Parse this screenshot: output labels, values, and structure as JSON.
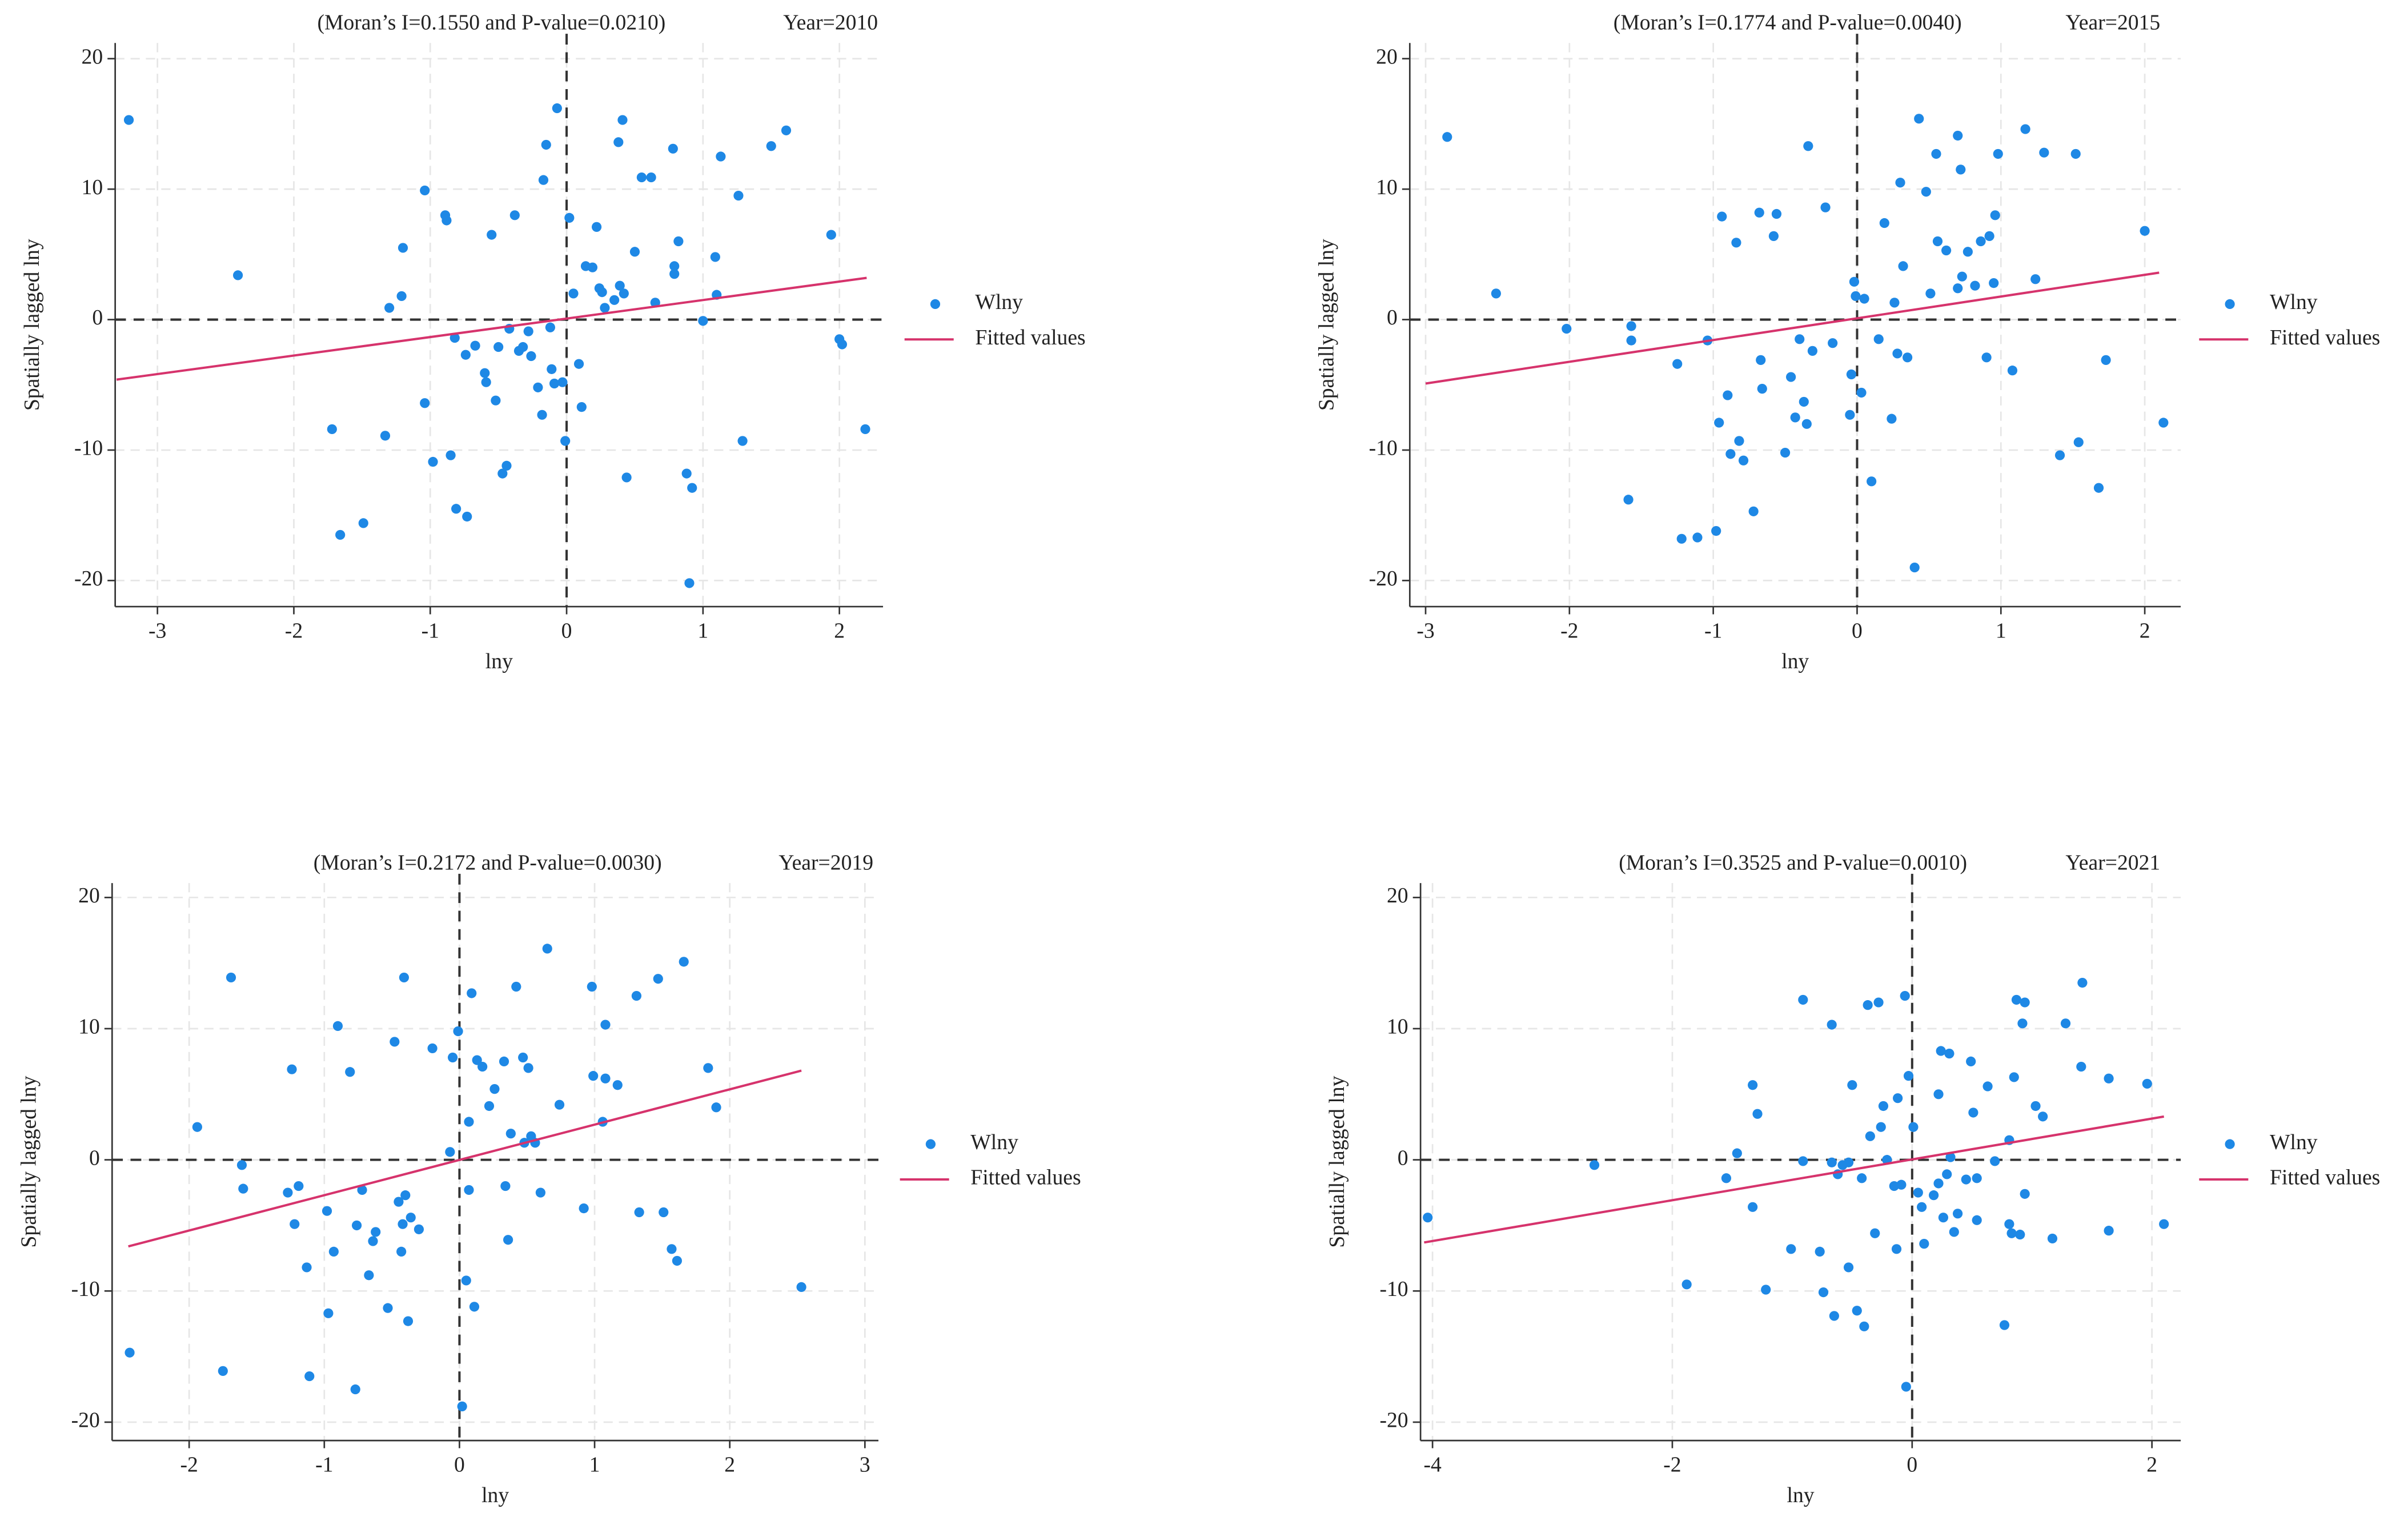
{
  "chart_data": [
    {
      "type": "scatter",
      "title": "(Moran’s I=0.1550 and P-value=0.0210)",
      "annotation": "Year=2010",
      "xlabel": "lny",
      "ylabel": "Spatially lagged lny",
      "xlim": [
        -3.31,
        2.32
      ],
      "ylim": [
        -22,
        21.2
      ],
      "xticks": [
        -3,
        -2,
        -1,
        0,
        1,
        2
      ],
      "yticks": [
        -20,
        -10,
        0,
        10,
        20
      ],
      "grid": true,
      "series": [
        {
          "name": "Wlny",
          "color": "#1e88e5",
          "type": "scatter",
          "x": [
            -3.21,
            -2.41,
            -1.72,
            -1.66,
            -1.49,
            -1.33,
            -1.3,
            -1.21,
            -1.2,
            -1.04,
            -1.04,
            -0.98,
            -0.89,
            -0.88,
            -0.85,
            -0.82,
            -0.81,
            -0.74,
            -0.73,
            -0.67,
            -0.6,
            -0.59,
            -0.55,
            -0.52,
            -0.5,
            -0.47,
            -0.44,
            -0.42,
            -0.38,
            -0.35,
            -0.32,
            -0.28,
            -0.26,
            -0.21,
            -0.18,
            -0.17,
            -0.15,
            -0.12,
            -0.11,
            -0.09,
            -0.07,
            -0.03,
            -0.01,
            0.02,
            0.05,
            0.09,
            0.11,
            0.14,
            0.19,
            0.22,
            0.24,
            0.26,
            0.28,
            0.35,
            0.38,
            0.39,
            0.41,
            0.42,
            0.44,
            0.5,
            0.55,
            0.62,
            0.65,
            0.78,
            0.79,
            0.79,
            0.82,
            0.88,
            0.9,
            0.92,
            1.0,
            1.09,
            1.13,
            1.1,
            1.26,
            1.29,
            1.5,
            1.61,
            1.94,
            2.0,
            2.02,
            2.19
          ],
          "values": [
            15.3,
            3.4,
            -8.4,
            -16.5,
            -15.6,
            -8.9,
            0.9,
            1.8,
            5.5,
            9.9,
            -6.4,
            -10.9,
            8.0,
            7.6,
            -10.4,
            -1.4,
            -14.5,
            -2.7,
            -15.1,
            -2.0,
            -4.1,
            -4.8,
            6.5,
            -6.2,
            -2.1,
            -11.8,
            -11.2,
            -0.7,
            8.0,
            -2.4,
            -2.1,
            -0.9,
            -2.8,
            -5.2,
            -7.3,
            10.7,
            13.4,
            -0.6,
            -3.8,
            -4.9,
            16.2,
            -4.8,
            -9.3,
            7.8,
            2.0,
            -3.4,
            -6.7,
            4.1,
            4.0,
            7.1,
            2.4,
            2.1,
            0.9,
            1.5,
            13.6,
            2.6,
            15.3,
            2.0,
            -12.1,
            5.2,
            10.9,
            10.9,
            1.3,
            13.1,
            3.5,
            4.1,
            6.0,
            -11.8,
            -20.2,
            -12.9,
            -0.1,
            4.8,
            12.5,
            1.9,
            9.5,
            -9.3,
            13.3,
            14.5,
            6.5,
            -1.5,
            -1.9,
            -8.4
          ]
        },
        {
          "name": "Fitted values",
          "color": "#d6336c",
          "type": "line",
          "x": [
            -3.3,
            2.2
          ],
          "values": [
            -4.6,
            3.2
          ]
        }
      ]
    },
    {
      "type": "scatter",
      "title": "(Moran’s I=0.1774 and P-value=0.0040)",
      "annotation": "Year=2015",
      "xlabel": "lny",
      "ylabel": "Spatially lagged lny",
      "xlim": [
        -3.11,
        2.25
      ],
      "ylim": [
        -22,
        21.2
      ],
      "xticks": [
        -3,
        -2,
        -1,
        0,
        1,
        2
      ],
      "yticks": [
        -20,
        -10,
        0,
        10,
        20
      ],
      "grid": true,
      "series": [
        {
          "name": "Wlny",
          "color": "#1e88e5",
          "type": "scatter",
          "x": [
            -2.85,
            -2.51,
            -2.02,
            -1.57,
            -1.57,
            -1.59,
            -1.25,
            -1.22,
            -1.11,
            -1.04,
            -0.98,
            -0.96,
            -0.94,
            -0.9,
            -0.88,
            -0.84,
            -0.82,
            -0.79,
            -0.72,
            -0.68,
            -0.67,
            -0.66,
            -0.58,
            -0.56,
            -0.5,
            -0.46,
            -0.43,
            -0.4,
            -0.37,
            -0.35,
            -0.34,
            -0.31,
            -0.22,
            -0.17,
            -0.05,
            -0.04,
            -0.02,
            -0.01,
            0.03,
            0.05,
            0.1,
            0.15,
            0.19,
            0.24,
            0.26,
            0.28,
            0.3,
            0.32,
            0.35,
            0.4,
            0.43,
            0.48,
            0.51,
            0.55,
            0.56,
            0.62,
            0.7,
            0.7,
            0.72,
            0.73,
            0.77,
            0.82,
            0.86,
            0.9,
            0.92,
            0.95,
            0.96,
            0.98,
            1.08,
            1.17,
            1.24,
            1.3,
            1.41,
            1.52,
            1.54,
            1.68,
            1.73,
            2.0,
            2.13
          ],
          "values": [
            14.0,
            2.0,
            -0.7,
            -0.5,
            -1.6,
            -13.8,
            -3.4,
            -16.8,
            -16.7,
            -1.6,
            -16.2,
            -7.9,
            7.9,
            -5.8,
            -10.3,
            5.9,
            -9.3,
            -10.8,
            -14.7,
            8.2,
            -3.1,
            -5.3,
            6.4,
            8.1,
            -10.2,
            -4.4,
            -7.5,
            -1.5,
            -6.3,
            -8.0,
            13.3,
            -2.4,
            8.6,
            -1.8,
            -7.3,
            -4.2,
            2.9,
            1.8,
            -5.6,
            1.6,
            -12.4,
            -1.5,
            7.4,
            -7.6,
            1.3,
            -2.6,
            10.5,
            4.1,
            -2.9,
            -19.0,
            15.4,
            9.8,
            2.0,
            12.7,
            6.0,
            5.3,
            14.1,
            2.4,
            11.5,
            3.3,
            5.2,
            2.6,
            6.0,
            -2.9,
            6.4,
            2.8,
            8.0,
            12.7,
            -3.9,
            14.6,
            3.1,
            12.8,
            -10.4,
            12.7,
            -9.4,
            -12.9,
            -3.1,
            6.8,
            -7.9
          ]
        },
        {
          "name": "Fitted values",
          "color": "#d6336c",
          "type": "line",
          "x": [
            -3.0,
            2.1
          ],
          "values": [
            -4.9,
            3.6
          ]
        }
      ]
    },
    {
      "type": "scatter",
      "title": "(Moran’s I=0.2172 and P-value=0.0030)",
      "annotation": "Year=2019",
      "xlabel": "lny",
      "ylabel": "Spatially lagged lny",
      "xlim": [
        -2.57,
        3.1
      ],
      "ylim": [
        -21.4,
        21.1
      ],
      "xticks": [
        -2,
        -1,
        0,
        1,
        2,
        3
      ],
      "yticks": [
        -20,
        -10,
        0,
        10,
        20
      ],
      "grid": true,
      "series": [
        {
          "name": "Wlny",
          "color": "#1e88e5",
          "type": "scatter",
          "x": [
            -2.44,
            -1.94,
            -1.75,
            -1.69,
            -1.61,
            -1.6,
            -1.27,
            -1.24,
            -1.22,
            -1.19,
            -1.13,
            -1.11,
            -0.98,
            -0.97,
            -0.93,
            -0.9,
            -0.81,
            -0.77,
            -0.76,
            -0.72,
            -0.67,
            -0.64,
            -0.62,
            -0.53,
            -0.48,
            -0.45,
            -0.43,
            -0.42,
            -0.41,
            -0.4,
            -0.38,
            -0.36,
            -0.3,
            -0.2,
            -0.05,
            -0.07,
            -0.01,
            0.02,
            0.05,
            0.07,
            0.07,
            0.09,
            0.11,
            0.13,
            0.17,
            0.22,
            0.26,
            0.33,
            0.34,
            0.36,
            0.38,
            0.42,
            0.47,
            0.48,
            0.51,
            0.53,
            0.56,
            0.6,
            0.65,
            0.74,
            0.92,
            0.98,
            0.99,
            1.06,
            1.08,
            1.08,
            1.17,
            1.31,
            1.33,
            1.47,
            1.51,
            1.57,
            1.61,
            1.66,
            1.84,
            1.9,
            2.53
          ],
          "values": [
            -14.7,
            2.5,
            -16.1,
            13.9,
            -0.4,
            -2.2,
            -2.5,
            6.9,
            -4.9,
            -2.0,
            -8.2,
            -16.5,
            -3.9,
            -11.7,
            -7.0,
            10.2,
            6.7,
            -17.5,
            -5.0,
            -2.3,
            -8.8,
            -6.2,
            -5.5,
            -11.3,
            9.0,
            -3.2,
            -7.0,
            -4.9,
            13.9,
            -2.7,
            -12.3,
            -4.4,
            -5.3,
            8.5,
            7.8,
            0.6,
            9.8,
            -18.8,
            -9.2,
            2.9,
            -2.3,
            12.7,
            -11.2,
            7.6,
            7.1,
            4.1,
            5.4,
            7.5,
            -2.0,
            -6.1,
            2.0,
            13.2,
            7.8,
            1.3,
            7.0,
            1.8,
            1.3,
            -2.5,
            16.1,
            4.2,
            -3.7,
            13.2,
            6.4,
            2.9,
            6.2,
            10.3,
            5.7,
            12.5,
            -4.0,
            13.8,
            -4.0,
            -6.8,
            -7.7,
            15.1,
            7.0,
            4.0,
            -9.7
          ]
        },
        {
          "name": "Fitted values",
          "color": "#d6336c",
          "type": "line",
          "x": [
            -2.45,
            2.53
          ],
          "values": [
            -6.6,
            6.8
          ]
        }
      ]
    },
    {
      "type": "scatter",
      "title": "(Moran’s I=0.3525 and P-value=0.0010)",
      "annotation": "Year=2021",
      "xlabel": "lny",
      "ylabel": "Spatially lagged lny",
      "xlim": [
        -4.1,
        2.24
      ],
      "ylim": [
        -21.4,
        21.1
      ],
      "xticks": [
        -4,
        -2,
        0,
        2
      ],
      "yticks": [
        -20,
        -10,
        0,
        10,
        20
      ],
      "grid": true,
      "series": [
        {
          "name": "Wlny",
          "color": "#1e88e5",
          "type": "scatter",
          "x": [
            -4.04,
            -2.65,
            -1.88,
            -1.46,
            -1.55,
            -1.33,
            -1.29,
            -1.33,
            -1.22,
            -1.01,
            -0.91,
            -0.91,
            -0.77,
            -0.74,
            -0.67,
            -0.67,
            -0.65,
            -0.62,
            -0.58,
            -0.53,
            -0.53,
            -0.5,
            -0.46,
            -0.42,
            -0.4,
            -0.37,
            -0.35,
            -0.31,
            -0.28,
            -0.26,
            -0.24,
            -0.21,
            -0.15,
            -0.13,
            -0.12,
            -0.09,
            -0.06,
            -0.05,
            -0.03,
            0.01,
            0.05,
            0.08,
            0.1,
            0.18,
            0.22,
            0.22,
            0.24,
            0.26,
            0.29,
            0.31,
            0.32,
            0.35,
            0.38,
            0.45,
            0.49,
            0.51,
            0.54,
            0.54,
            0.63,
            0.69,
            0.77,
            0.81,
            0.81,
            0.83,
            0.85,
            0.87,
            0.9,
            0.92,
            0.94,
            0.94,
            1.03,
            1.09,
            1.17,
            1.28,
            1.42,
            1.41,
            1.64,
            1.64,
            1.96,
            2.1
          ],
          "values": [
            -4.4,
            -0.4,
            -9.5,
            0.5,
            -1.4,
            5.7,
            3.5,
            -3.6,
            -9.9,
            -6.8,
            12.2,
            -0.1,
            -7.0,
            -10.1,
            10.3,
            -0.2,
            -11.9,
            -1.1,
            -0.4,
            -0.2,
            -8.2,
            5.7,
            -11.5,
            -1.4,
            -12.7,
            11.8,
            1.8,
            -5.6,
            12.0,
            2.5,
            4.1,
            0.0,
            -2.0,
            -6.8,
            4.7,
            -1.9,
            12.5,
            -17.3,
            6.4,
            2.5,
            -2.5,
            -3.6,
            -6.4,
            -2.7,
            5.0,
            -1.8,
            8.3,
            -4.4,
            -1.1,
            8.1,
            0.2,
            -5.5,
            -4.1,
            -1.5,
            7.5,
            3.6,
            -4.6,
            -1.4,
            5.6,
            -0.1,
            -12.6,
            1.5,
            -4.9,
            -5.6,
            6.3,
            12.2,
            -5.7,
            10.4,
            12.0,
            -2.6,
            4.1,
            3.3,
            -6.0,
            10.4,
            13.5,
            7.1,
            6.2,
            -5.4,
            5.8,
            -4.9
          ]
        },
        {
          "name": "Fitted values",
          "color": "#d6336c",
          "type": "line",
          "x": [
            -4.07,
            2.1
          ],
          "values": [
            -6.3,
            3.3
          ]
        }
      ]
    }
  ]
}
